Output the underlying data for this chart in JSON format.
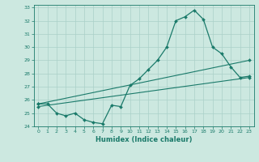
{
  "xlabel": "Humidex (Indice chaleur)",
  "bg_color": "#cce8e0",
  "grid_color": "#aad0c8",
  "line_color": "#1a7a6a",
  "xlim": [
    -0.5,
    23.5
  ],
  "ylim": [
    24,
    33.2
  ],
  "xticks": [
    0,
    1,
    2,
    3,
    4,
    5,
    6,
    7,
    8,
    9,
    10,
    11,
    12,
    13,
    14,
    15,
    16,
    17,
    18,
    19,
    20,
    21,
    22,
    23
  ],
  "yticks": [
    24,
    25,
    26,
    27,
    28,
    29,
    30,
    31,
    32,
    33
  ],
  "series1_x": [
    0,
    1,
    2,
    3,
    4,
    5,
    6,
    7,
    8,
    9,
    10,
    11,
    12,
    13,
    14,
    15,
    16,
    17,
    18,
    19,
    20,
    21,
    22,
    23
  ],
  "series1_y": [
    25.7,
    25.7,
    25.0,
    24.8,
    25.0,
    24.5,
    24.3,
    24.2,
    25.6,
    25.5,
    27.1,
    27.6,
    28.3,
    29.0,
    30.0,
    32.0,
    32.3,
    32.8,
    32.1,
    30.0,
    29.5,
    28.5,
    27.7,
    27.8
  ],
  "series2_x": [
    0,
    23
  ],
  "series2_y": [
    25.5,
    27.7
  ],
  "series3_x": [
    0,
    23
  ],
  "series3_y": [
    25.7,
    29.0
  ]
}
